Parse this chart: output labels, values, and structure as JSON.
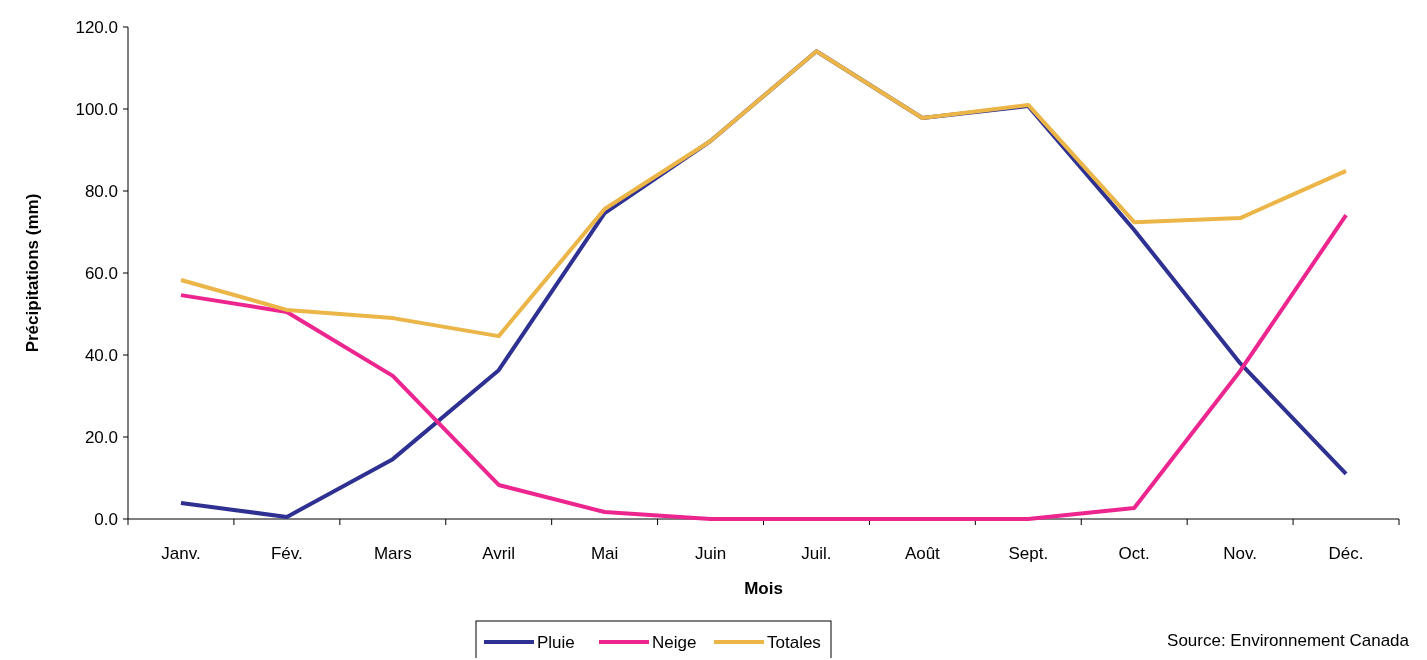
{
  "chart_data": {
    "type": "line",
    "xlabel": "Mois",
    "ylabel": "Précipitations (mm)",
    "categories": [
      "Janv.",
      "Fév.",
      "Mars",
      "Avril",
      "Mai",
      "Juin",
      "Juil.",
      "Août",
      "Sept.",
      "Oct.",
      "Nov.",
      "Déc."
    ],
    "series": [
      {
        "name": "Pluie",
        "color": "#2e3192",
        "values": [
          3.9,
          0.5,
          14.6,
          36.3,
          74.6,
          92.2,
          114.1,
          97.8,
          100.7,
          70.5,
          38.0,
          11.0
        ]
      },
      {
        "name": "Neige",
        "color": "#ec258f",
        "values": [
          54.6,
          50.5,
          34.9,
          8.3,
          1.7,
          0,
          0,
          0,
          0,
          2.7,
          36.1,
          74.1
        ]
      },
      {
        "name": "Totales",
        "color": "#ebb548",
        "values": [
          58.3,
          51.0,
          49.0,
          44.6,
          75.6,
          92.2,
          114.1,
          97.8,
          101.0,
          72.4,
          73.4,
          84.9
        ]
      }
    ],
    "ylim": [
      0,
      120
    ],
    "yticks": [
      {
        "value": 0,
        "label": "0.0"
      },
      {
        "value": 20,
        "label": "20.0"
      },
      {
        "value": 40,
        "label": "40.0"
      },
      {
        "value": 60,
        "label": "60.0"
      },
      {
        "value": 80,
        "label": "80.0"
      },
      {
        "value": 100,
        "label": "100.0"
      },
      {
        "value": 120,
        "label": "120.0"
      }
    ],
    "grid": false,
    "legend": "bottom",
    "line_style": "solid",
    "marker": "none",
    "annotations": [
      "Source: Environnement Canada"
    ]
  }
}
